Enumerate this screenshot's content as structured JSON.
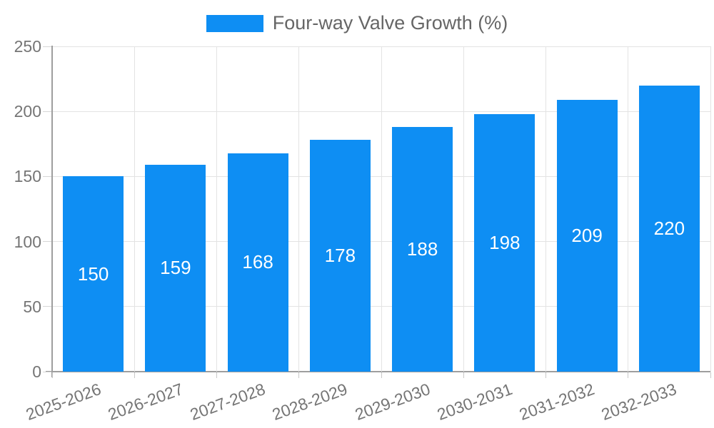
{
  "legend": {
    "label": "Four-way Valve Growth (%)"
  },
  "colors": {
    "bar": "#0E8EF3",
    "grid": "#e3e3e3",
    "axis": "#9e9e9e",
    "tick_text": "#757575",
    "legend_text": "#666666",
    "bar_label_text": "#ffffff",
    "background": "#ffffff"
  },
  "chart_data": {
    "type": "bar",
    "title": "Four-way Valve Growth (%)",
    "categories": [
      "2025-2026",
      "2026-2027",
      "2027-2028",
      "2028-2029",
      "2029-2030",
      "2030-2031",
      "2031-2032",
      "2032-2033"
    ],
    "values": [
      150,
      159,
      168,
      178,
      188,
      198,
      209,
      220
    ],
    "xlabel": "",
    "ylabel": "",
    "ylim": [
      0,
      250
    ],
    "yticks": [
      0,
      50,
      100,
      150,
      200,
      250
    ],
    "grid": true,
    "legend_position": "top-center",
    "value_labels": "inside-center",
    "x_label_rotation_deg": -20
  }
}
